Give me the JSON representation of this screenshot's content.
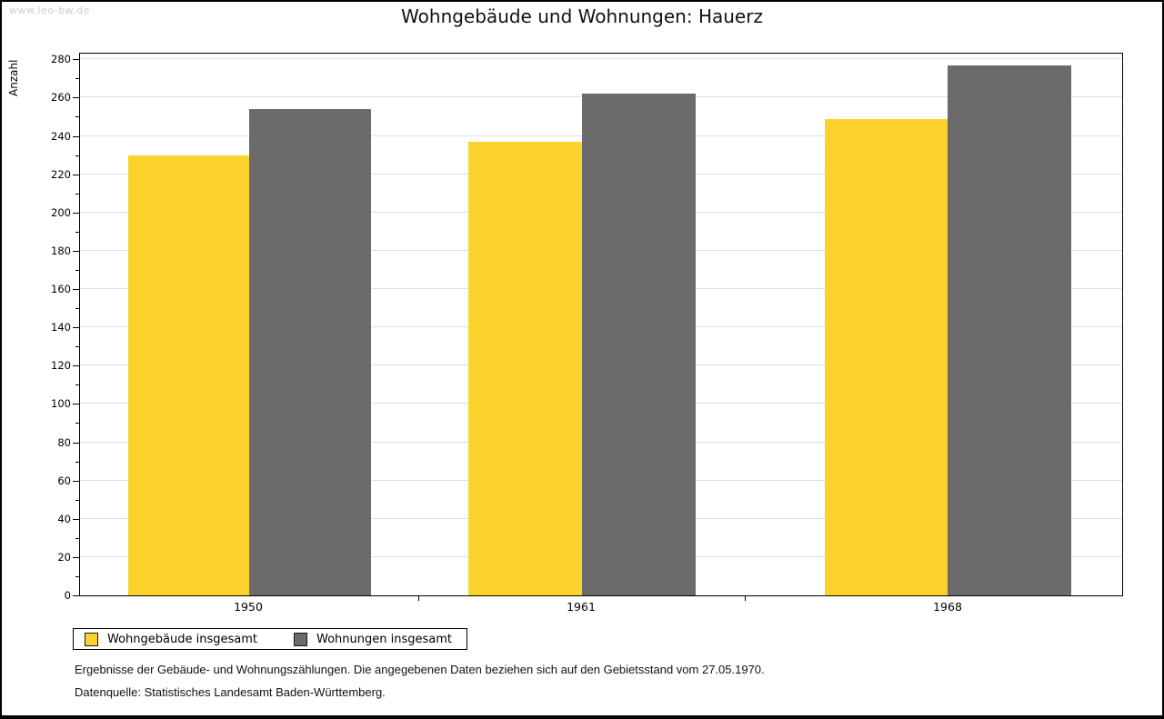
{
  "watermark": "www.leo-bw.de",
  "chart_data": {
    "type": "bar",
    "title": "Wohngebäude und Wohnungen: Hauerz",
    "ylabel": "Anzahl",
    "xlabel": "",
    "categories": [
      "1950",
      "1961",
      "1968"
    ],
    "series": [
      {
        "name": "Wohngebäude insgesamt",
        "color": "#FCD32D",
        "values": [
          230,
          237,
          249
        ]
      },
      {
        "name": "Wohnungen insgesamt",
        "color": "#6B6B6B",
        "values": [
          254,
          262,
          277
        ]
      }
    ],
    "ylim": [
      0,
      283
    ],
    "ytick_major": 20,
    "ytick_minor": 10,
    "grid": true,
    "gridline_color": "#dedede",
    "legend_position": "bottom-left"
  },
  "footer": {
    "line1": "Ergebnisse der Gebäude- und Wohnungszählungen. Die angegebenen Daten beziehen sich auf den Gebietsstand vom 27.05.1970.",
    "line2": "Datenquelle: Statistisches Landesamt Baden-Württemberg."
  }
}
